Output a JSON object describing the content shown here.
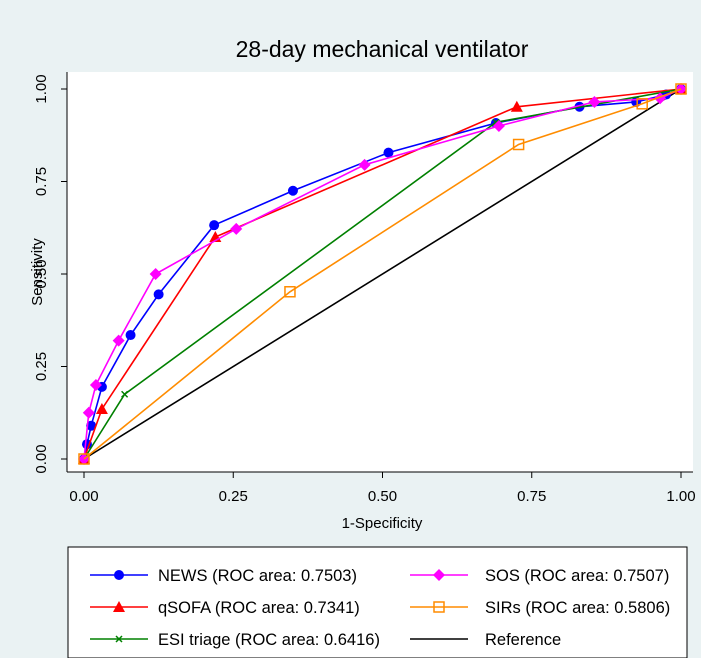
{
  "chart_data": {
    "type": "line",
    "title": "28-day mechanical ventilator",
    "xlabel": "1-Specificity",
    "ylabel": "Sensitivity",
    "xlim": [
      0,
      1
    ],
    "ylim": [
      0,
      1
    ],
    "x_ticks": [
      "0.00",
      "0.25",
      "0.50",
      "0.75",
      "1.00"
    ],
    "y_ticks": [
      "0.00",
      "0.25",
      "0.50",
      "0.75",
      "1.00"
    ],
    "grid": false,
    "legend_position": "bottom",
    "background_color": "#eaf2f3",
    "plot_background": "#ffffff",
    "series": [
      {
        "name": "NEWS (ROC area: 0.7503)",
        "color": "#0000ff",
        "marker": "circle",
        "points": [
          [
            0,
            0
          ],
          [
            0.005,
            0.04
          ],
          [
            0.012,
            0.09
          ],
          [
            0.03,
            0.195
          ],
          [
            0.078,
            0.335
          ],
          [
            0.125,
            0.445
          ],
          [
            0.218,
            0.632
          ],
          [
            0.35,
            0.725
          ],
          [
            0.51,
            0.828
          ],
          [
            0.69,
            0.908
          ],
          [
            0.83,
            0.952
          ],
          [
            0.925,
            0.965
          ],
          [
            0.975,
            0.985
          ],
          [
            1,
            1
          ]
        ]
      },
      {
        "name": "qSOFA (ROC area: 0.7341)",
        "color": "#ff0000",
        "marker": "triangle",
        "points": [
          [
            0,
            0
          ],
          [
            0.03,
            0.135
          ],
          [
            0.22,
            0.6
          ],
          [
            0.725,
            0.952
          ],
          [
            1,
            1
          ]
        ]
      },
      {
        "name": "ESI triage (ROC area: 0.6416)",
        "color": "#008000",
        "marker": "x",
        "points": [
          [
            0,
            0
          ],
          [
            0.068,
            0.175
          ],
          [
            0.69,
            0.91
          ],
          [
            1,
            1
          ]
        ]
      },
      {
        "name": "SOS (ROC area: 0.7507)",
        "color": "#ff00ff",
        "marker": "diamond",
        "points": [
          [
            0,
            0
          ],
          [
            0.008,
            0.125
          ],
          [
            0.02,
            0.2
          ],
          [
            0.058,
            0.32
          ],
          [
            0.12,
            0.5
          ],
          [
            0.255,
            0.622
          ],
          [
            0.47,
            0.795
          ],
          [
            0.695,
            0.9
          ],
          [
            0.855,
            0.965
          ],
          [
            0.965,
            0.975
          ],
          [
            1,
            1
          ]
        ]
      },
      {
        "name": "SIRs (ROC area: 0.5806)",
        "color": "#ff8c00",
        "marker": "square-open",
        "points": [
          [
            0,
            0
          ],
          [
            0.345,
            0.452
          ],
          [
            0.728,
            0.85
          ],
          [
            0.935,
            0.96
          ],
          [
            1,
            1
          ]
        ]
      },
      {
        "name": "Reference",
        "color": "#000000",
        "marker": "none",
        "points": [
          [
            0,
            0
          ],
          [
            1,
            1
          ]
        ]
      }
    ]
  }
}
